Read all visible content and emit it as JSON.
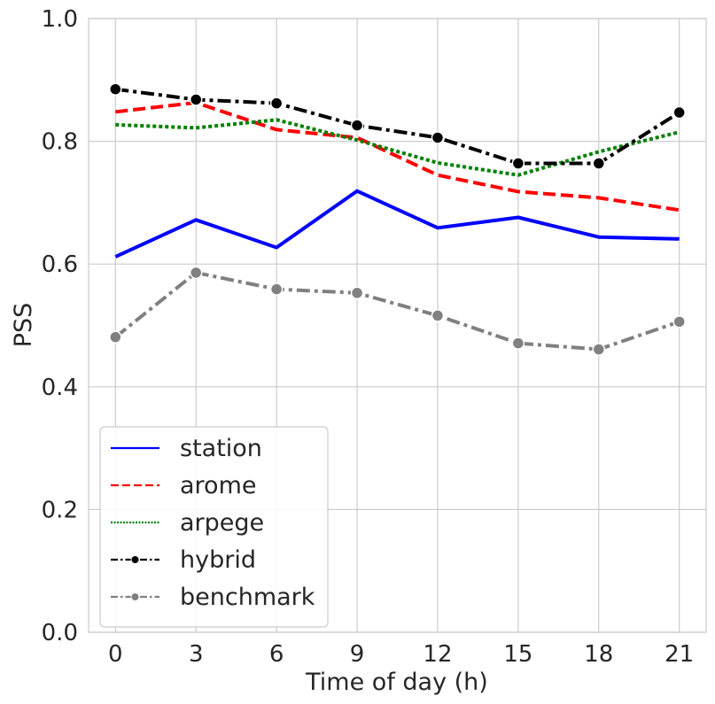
{
  "chart_data": {
    "type": "line",
    "xlabel": "Time of day (h)",
    "ylabel": "PSS",
    "x": [
      0,
      3,
      6,
      9,
      12,
      15,
      18,
      21
    ],
    "xticks": [
      "0",
      "3",
      "6",
      "9",
      "12",
      "15",
      "18",
      "21"
    ],
    "yticks": [
      "0.0",
      "0.2",
      "0.4",
      "0.6",
      "0.8",
      "1.0"
    ],
    "xlim": [
      -1,
      22
    ],
    "ylim": [
      0,
      1
    ],
    "grid": true,
    "legend_position": "bottom-left",
    "series": [
      {
        "name": "station",
        "color": "#0000ff",
        "style": "solid",
        "marker": false,
        "values": [
          0.612,
          0.672,
          0.627,
          0.719,
          0.659,
          0.676,
          0.644,
          0.641
        ]
      },
      {
        "name": "arome",
        "color": "#ff0000",
        "style": "dashed",
        "marker": false,
        "values": [
          0.848,
          0.863,
          0.819,
          0.806,
          0.745,
          0.718,
          0.708,
          0.688
        ]
      },
      {
        "name": "arpege",
        "color": "#008000",
        "style": "dotted",
        "marker": false,
        "values": [
          0.827,
          0.822,
          0.835,
          0.802,
          0.765,
          0.745,
          0.783,
          0.815
        ]
      },
      {
        "name": "hybrid",
        "color": "#000000",
        "style": "dashdot",
        "marker": true,
        "values": [
          0.885,
          0.868,
          0.862,
          0.826,
          0.806,
          0.764,
          0.764,
          0.847
        ]
      },
      {
        "name": "benchmark",
        "color": "#808080",
        "style": "dashdot",
        "marker": true,
        "values": [
          0.481,
          0.586,
          0.559,
          0.553,
          0.516,
          0.471,
          0.461,
          0.506
        ]
      }
    ]
  }
}
